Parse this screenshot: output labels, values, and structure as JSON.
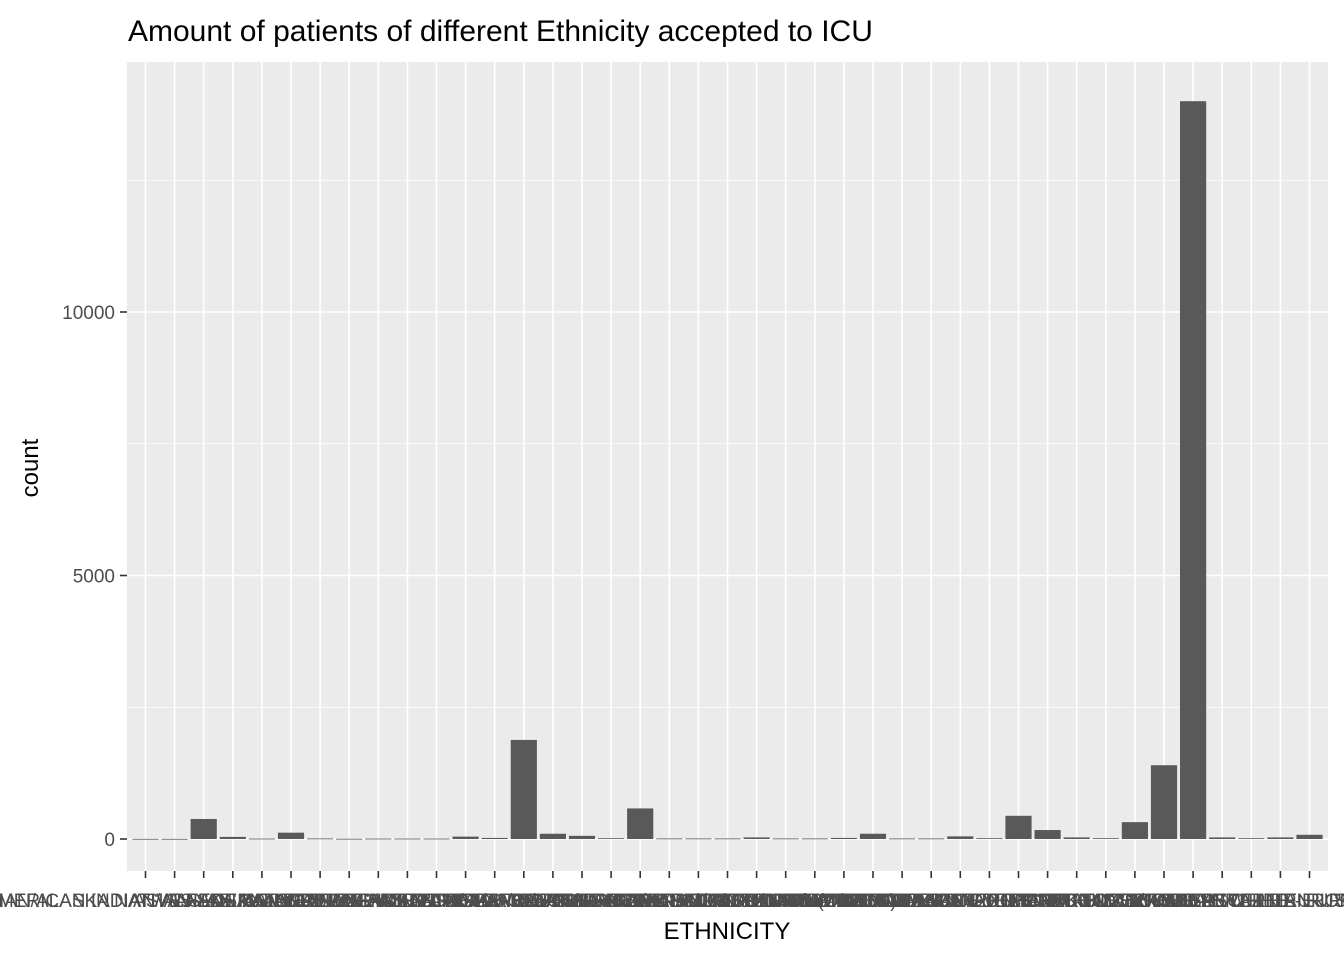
{
  "chart_data": {
    "type": "bar",
    "title": "Amount of patients of different Ethnicity accepted to ICU",
    "xlabel": "ETHNICITY",
    "ylabel": "count",
    "ylim": [
      0,
      14000
    ],
    "yticks": [
      0,
      5000,
      10000
    ],
    "grid": true,
    "categories": [
      "AMERICAN INDIAN/ALASKA NATIVE",
      "AMERICAN INDIAN/ALASKA NATIVE FEDERALLY RECOGNIZED TRIBE",
      "ASIAN",
      "ASIAN - ASIAN INDIAN",
      "ASIAN - CAMBODIAN",
      "ASIAN - CHINESE",
      "ASIAN - FILIPINO",
      "ASIAN - JAPANESE",
      "ASIAN - KOREAN",
      "ASIAN - OTHER",
      "ASIAN - THAI",
      "ASIAN - VIETNAMESE",
      "BLACK/AFRICAN",
      "BLACK/AFRICAN AMERICAN",
      "BLACK/CAPE VERDEAN",
      "BLACK/HAITIAN",
      "CARIBBEAN ISLAND",
      "HISPANIC OR LATINO",
      "HISPANIC/LATINO - CENTRAL AMERICAN (OTHER)",
      "HISPANIC/LATINO - COLOMBIAN",
      "HISPANIC/LATINO - CUBAN",
      "HISPANIC/LATINO - DOMINICAN",
      "HISPANIC/LATINO - GUATEMALAN",
      "HISPANIC/LATINO - HONDURAN",
      "HISPANIC/LATINO - MEXICAN",
      "HISPANIC/LATINO - PUERTO RICAN",
      "HISPANIC/LATINO - SALVADORAN",
      "MIDDLE EASTERN",
      "MULTI RACE ETHNICITY",
      "NATIVE HAWAIIAN OR OTHER PACIFIC ISLANDER",
      "OTHER",
      "PATIENT DECLINED TO ANSWER",
      "PORTUGUESE",
      "SOUTH AMERICAN",
      "UNABLE TO OBTAIN",
      "UNKNOWN/NOT SPECIFIED",
      "WHITE",
      "WHITE - BRAZILIAN",
      "WHITE - EASTERN EUROPEAN",
      "WHITE - OTHER EUROPEAN",
      "WHITE - RUSSIAN"
    ],
    "values": [
      3,
      3,
      380,
      40,
      8,
      120,
      10,
      5,
      8,
      8,
      8,
      45,
      20,
      1880,
      100,
      60,
      15,
      580,
      10,
      10,
      10,
      30,
      10,
      10,
      20,
      100,
      10,
      10,
      50,
      15,
      440,
      170,
      30,
      15,
      320,
      1400,
      14000,
      30,
      15,
      30,
      80
    ]
  }
}
